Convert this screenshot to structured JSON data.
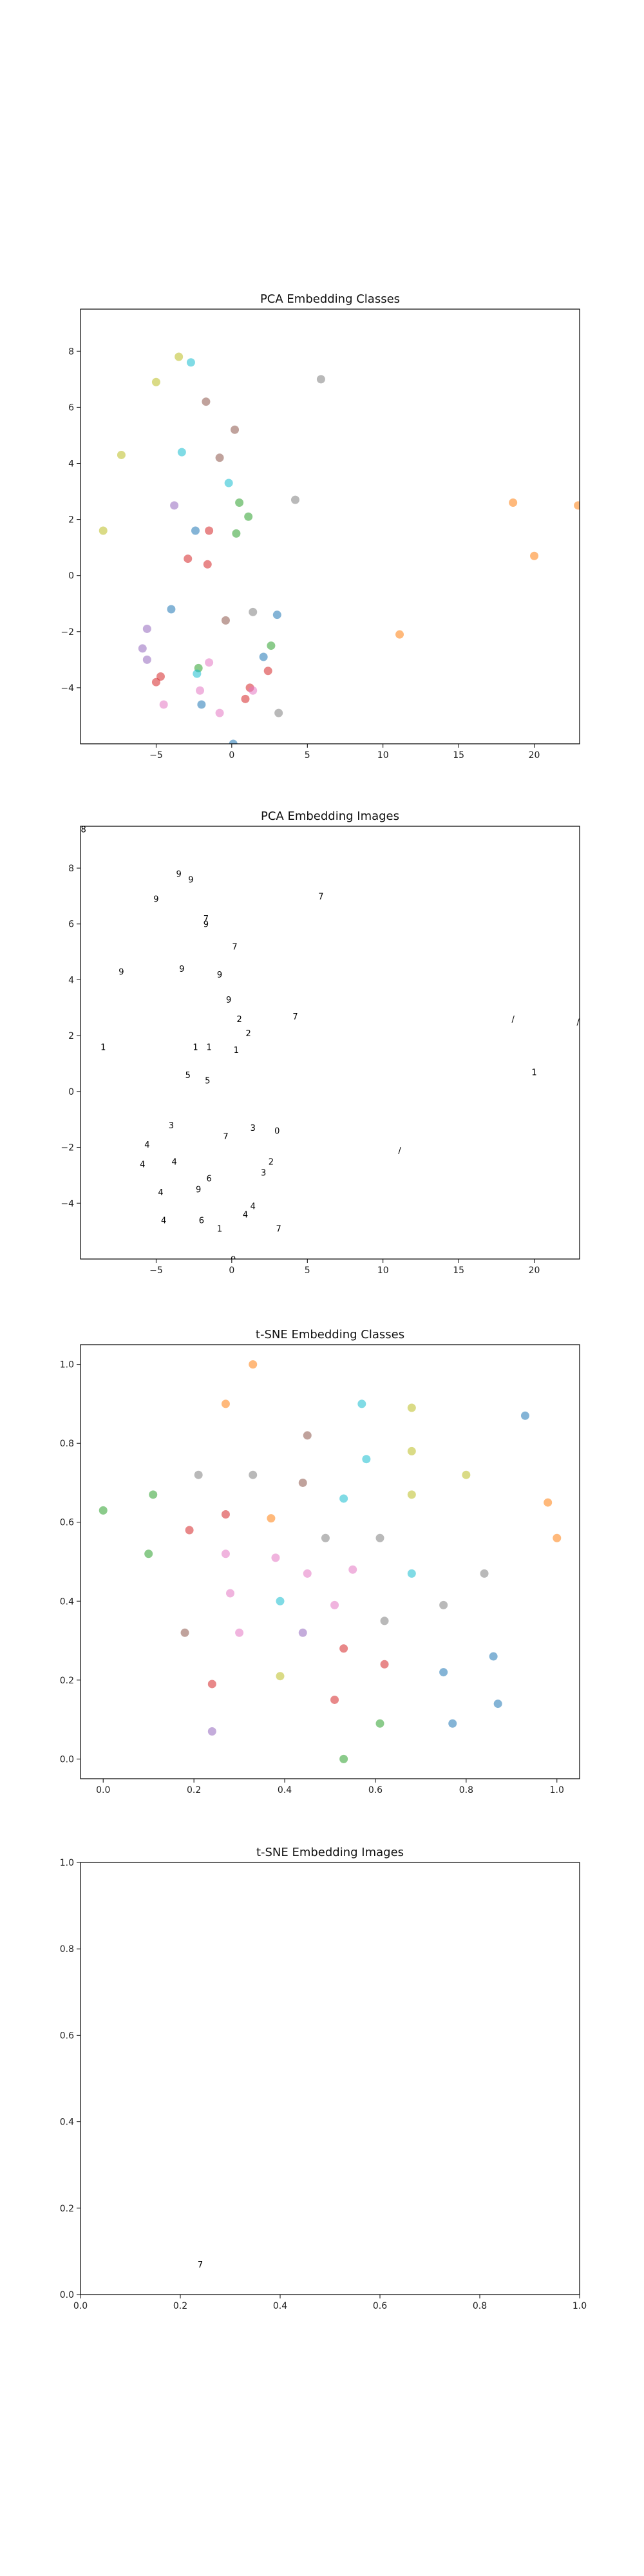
{
  "chart_data": [
    {
      "type": "scatter",
      "title": "PCA Embedding Classes",
      "xlim": [
        -10,
        23
      ],
      "ylim": [
        -6,
        9.5
      ],
      "xticks": [
        -5,
        0,
        5,
        10,
        15,
        20
      ],
      "yticks": [
        -4,
        -2,
        0,
        2,
        4,
        6,
        8
      ],
      "points": [
        {
          "x": -3.5,
          "y": 7.8,
          "c": "#bcbd22"
        },
        {
          "x": -2.7,
          "y": 7.6,
          "c": "#17becf"
        },
        {
          "x": -5,
          "y": 6.9,
          "c": "#bcbd22"
        },
        {
          "x": 5.9,
          "y": 7,
          "c": "#7f7f7f"
        },
        {
          "x": -1.7,
          "y": 6.2,
          "c": "#8c564b"
        },
        {
          "x": 0.2,
          "y": 5.2,
          "c": "#8c564b"
        },
        {
          "x": -7.3,
          "y": 4.3,
          "c": "#bcbd22"
        },
        {
          "x": -3.3,
          "y": 4.4,
          "c": "#17becf"
        },
        {
          "x": -0.8,
          "y": 4.2,
          "c": "#8c564b"
        },
        {
          "x": -3.8,
          "y": 2.5,
          "c": "#9467bd"
        },
        {
          "x": -0.2,
          "y": 3.3,
          "c": "#17becf"
        },
        {
          "x": 4.2,
          "y": 2.7,
          "c": "#7f7f7f"
        },
        {
          "x": 0.5,
          "y": 2.6,
          "c": "#2ca02c"
        },
        {
          "x": 1.1,
          "y": 2.1,
          "c": "#2ca02c"
        },
        {
          "x": 18.6,
          "y": 2.6,
          "c": "#ff7f0e"
        },
        {
          "x": 22.9,
          "y": 2.5,
          "c": "#ff7f0e"
        },
        {
          "x": -8.5,
          "y": 1.6,
          "c": "#bcbd22"
        },
        {
          "x": -2.4,
          "y": 1.6,
          "c": "#1f77b4"
        },
        {
          "x": -1.5,
          "y": 1.6,
          "c": "#d62728"
        },
        {
          "x": 0.3,
          "y": 1.5,
          "c": "#2ca02c"
        },
        {
          "x": -2.9,
          "y": 0.6,
          "c": "#d62728"
        },
        {
          "x": -1.6,
          "y": 0.4,
          "c": "#d62728"
        },
        {
          "x": 20,
          "y": 0.7,
          "c": "#ff7f0e"
        },
        {
          "x": -4,
          "y": -1.2,
          "c": "#1f77b4"
        },
        {
          "x": 1.4,
          "y": -1.3,
          "c": "#7f7f7f"
        },
        {
          "x": 3,
          "y": -1.4,
          "c": "#1f77b4"
        },
        {
          "x": -0.4,
          "y": -1.6,
          "c": "#8c564b"
        },
        {
          "x": 11.1,
          "y": -2.1,
          "c": "#ff7f0e"
        },
        {
          "x": -5.6,
          "y": -1.9,
          "c": "#9467bd"
        },
        {
          "x": -5.9,
          "y": -2.6,
          "c": "#9467bd"
        },
        {
          "x": 2.6,
          "y": -2.5,
          "c": "#2ca02c"
        },
        {
          "x": 2.1,
          "y": -2.9,
          "c": "#1f77b4"
        },
        {
          "x": -5.6,
          "y": -3,
          "c": "#9467bd"
        },
        {
          "x": -1.5,
          "y": -3.1,
          "c": "#e377c2"
        },
        {
          "x": -2.2,
          "y": -3.3,
          "c": "#2ca02c"
        },
        {
          "x": -2.3,
          "y": -3.5,
          "c": "#17becf"
        },
        {
          "x": 2.4,
          "y": -3.4,
          "c": "#d62728"
        },
        {
          "x": -4.7,
          "y": -3.6,
          "c": "#d62728"
        },
        {
          "x": -5,
          "y": -3.8,
          "c": "#d62728"
        },
        {
          "x": -2.1,
          "y": -4.1,
          "c": "#e377c2"
        },
        {
          "x": 1.2,
          "y": -4,
          "c": "#d62728"
        },
        {
          "x": 1.4,
          "y": -4.1,
          "c": "#e377c2"
        },
        {
          "x": 0.9,
          "y": -4.4,
          "c": "#d62728"
        },
        {
          "x": -4.5,
          "y": -4.6,
          "c": "#e377c2"
        },
        {
          "x": -2,
          "y": -4.6,
          "c": "#1f77b4"
        },
        {
          "x": -0.8,
          "y": -4.9,
          "c": "#e377c2"
        },
        {
          "x": 3.1,
          "y": -4.9,
          "c": "#7f7f7f"
        },
        {
          "x": 0.1,
          "y": -6,
          "c": "#1f77b4"
        }
      ]
    },
    {
      "type": "scatter",
      "title": "PCA Embedding Images",
      "xlim": [
        -10,
        23
      ],
      "ylim": [
        -6,
        9.5
      ],
      "xticks": [
        -5,
        0,
        5,
        10,
        15,
        20
      ],
      "yticks": [
        -4,
        -2,
        0,
        2,
        4,
        6,
        8
      ],
      "glyphs": [
        {
          "x": -9.8,
          "y": 9.4,
          "t": "8"
        },
        {
          "x": -3.5,
          "y": 7.8,
          "t": "9"
        },
        {
          "x": -2.7,
          "y": 7.6,
          "t": "9"
        },
        {
          "x": -5,
          "y": 6.9,
          "t": "9"
        },
        {
          "x": 5.9,
          "y": 7,
          "t": "7"
        },
        {
          "x": -1.7,
          "y": 6.2,
          "t": "7"
        },
        {
          "x": -1.7,
          "y": 6,
          "t": "9"
        },
        {
          "x": 0.2,
          "y": 5.2,
          "t": "7"
        },
        {
          "x": -7.3,
          "y": 4.3,
          "t": "9"
        },
        {
          "x": -3.3,
          "y": 4.4,
          "t": "9"
        },
        {
          "x": -0.8,
          "y": 4.2,
          "t": "9"
        },
        {
          "x": -0.2,
          "y": 3.3,
          "t": "9"
        },
        {
          "x": 4.2,
          "y": 2.7,
          "t": "7"
        },
        {
          "x": 0.5,
          "y": 2.6,
          "t": "2"
        },
        {
          "x": 1.1,
          "y": 2.1,
          "t": "2"
        },
        {
          "x": 18.6,
          "y": 2.6,
          "t": "/"
        },
        {
          "x": 22.9,
          "y": 2.5,
          "t": "/"
        },
        {
          "x": -8.5,
          "y": 1.6,
          "t": "1"
        },
        {
          "x": -2.4,
          "y": 1.6,
          "t": "1"
        },
        {
          "x": -1.5,
          "y": 1.6,
          "t": "1"
        },
        {
          "x": 0.3,
          "y": 1.5,
          "t": "1"
        },
        {
          "x": -2.9,
          "y": 0.6,
          "t": "5"
        },
        {
          "x": -1.6,
          "y": 0.4,
          "t": "5"
        },
        {
          "x": 20,
          "y": 0.7,
          "t": "1"
        },
        {
          "x": -4,
          "y": -1.2,
          "t": "3"
        },
        {
          "x": 1.4,
          "y": -1.3,
          "t": "3"
        },
        {
          "x": 3,
          "y": -1.4,
          "t": "0"
        },
        {
          "x": -0.4,
          "y": -1.6,
          "t": "7"
        },
        {
          "x": 11.1,
          "y": -2.1,
          "t": "/"
        },
        {
          "x": -5.6,
          "y": -1.9,
          "t": "4"
        },
        {
          "x": -5.9,
          "y": -2.6,
          "t": "4"
        },
        {
          "x": 2.6,
          "y": -2.5,
          "t": "2"
        },
        {
          "x": 2.1,
          "y": -2.9,
          "t": "3"
        },
        {
          "x": -3.8,
          "y": -2.5,
          "t": "4"
        },
        {
          "x": -1.5,
          "y": -3.1,
          "t": "6"
        },
        {
          "x": -2.2,
          "y": -3.5,
          "t": "9"
        },
        {
          "x": -4.7,
          "y": -3.6,
          "t": "4"
        },
        {
          "x": 1.4,
          "y": -4.1,
          "t": "4"
        },
        {
          "x": 0.9,
          "y": -4.4,
          "t": "4"
        },
        {
          "x": -4.5,
          "y": -4.6,
          "t": "4"
        },
        {
          "x": -2,
          "y": -4.6,
          "t": "6"
        },
        {
          "x": -0.8,
          "y": -4.9,
          "t": "1"
        },
        {
          "x": 3.1,
          "y": -4.9,
          "t": "7"
        },
        {
          "x": 0.1,
          "y": -6,
          "t": "0"
        }
      ]
    },
    {
      "type": "scatter",
      "title": "t-SNE Embedding Classes",
      "xlim": [
        -0.05,
        1.05
      ],
      "ylim": [
        -0.05,
        1.05
      ],
      "xticks": [
        0.0,
        0.2,
        0.4,
        0.6,
        0.8,
        1.0
      ],
      "yticks": [
        0.0,
        0.2,
        0.4,
        0.6,
        0.8,
        1.0
      ],
      "points": [
        {
          "x": 0.33,
          "y": 1.0,
          "c": "#ff7f0e"
        },
        {
          "x": 0.27,
          "y": 0.9,
          "c": "#ff7f0e"
        },
        {
          "x": 0.57,
          "y": 0.9,
          "c": "#17becf"
        },
        {
          "x": 0.68,
          "y": 0.89,
          "c": "#bcbd22"
        },
        {
          "x": 0.93,
          "y": 0.87,
          "c": "#1f77b4"
        },
        {
          "x": 0.45,
          "y": 0.82,
          "c": "#8c564b"
        },
        {
          "x": 0.68,
          "y": 0.78,
          "c": "#bcbd22"
        },
        {
          "x": 0.58,
          "y": 0.76,
          "c": "#17becf"
        },
        {
          "x": 0.21,
          "y": 0.72,
          "c": "#7f7f7f"
        },
        {
          "x": 0.33,
          "y": 0.72,
          "c": "#7f7f7f"
        },
        {
          "x": 0.8,
          "y": 0.72,
          "c": "#bcbd22"
        },
        {
          "x": 0.44,
          "y": 0.7,
          "c": "#8c564b"
        },
        {
          "x": 0.11,
          "y": 0.67,
          "c": "#2ca02c"
        },
        {
          "x": 0.68,
          "y": 0.67,
          "c": "#bcbd22"
        },
        {
          "x": 0.53,
          "y": 0.66,
          "c": "#17becf"
        },
        {
          "x": 0.98,
          "y": 0.65,
          "c": "#ff7f0e"
        },
        {
          "x": 0.0,
          "y": 0.63,
          "c": "#2ca02c"
        },
        {
          "x": 0.27,
          "y": 0.62,
          "c": "#d62728"
        },
        {
          "x": 0.37,
          "y": 0.61,
          "c": "#ff7f0e"
        },
        {
          "x": 0.19,
          "y": 0.58,
          "c": "#d62728"
        },
        {
          "x": 0.49,
          "y": 0.56,
          "c": "#7f7f7f"
        },
        {
          "x": 0.61,
          "y": 0.56,
          "c": "#7f7f7f"
        },
        {
          "x": 1.0,
          "y": 0.56,
          "c": "#ff7f0e"
        },
        {
          "x": 0.27,
          "y": 0.52,
          "c": "#e377c2"
        },
        {
          "x": 0.1,
          "y": 0.52,
          "c": "#2ca02c"
        },
        {
          "x": 0.38,
          "y": 0.51,
          "c": "#e377c2"
        },
        {
          "x": 0.55,
          "y": 0.48,
          "c": "#e377c2"
        },
        {
          "x": 0.45,
          "y": 0.47,
          "c": "#e377c2"
        },
        {
          "x": 0.68,
          "y": 0.47,
          "c": "#17becf"
        },
        {
          "x": 0.84,
          "y": 0.47,
          "c": "#7f7f7f"
        },
        {
          "x": 0.28,
          "y": 0.42,
          "c": "#e377c2"
        },
        {
          "x": 0.39,
          "y": 0.4,
          "c": "#17becf"
        },
        {
          "x": 0.51,
          "y": 0.39,
          "c": "#e377c2"
        },
        {
          "x": 0.75,
          "y": 0.39,
          "c": "#7f7f7f"
        },
        {
          "x": 0.62,
          "y": 0.35,
          "c": "#7f7f7f"
        },
        {
          "x": 0.18,
          "y": 0.32,
          "c": "#8c564b"
        },
        {
          "x": 0.3,
          "y": 0.32,
          "c": "#e377c2"
        },
        {
          "x": 0.44,
          "y": 0.32,
          "c": "#9467bd"
        },
        {
          "x": 0.53,
          "y": 0.28,
          "c": "#d62728"
        },
        {
          "x": 0.86,
          "y": 0.26,
          "c": "#1f77b4"
        },
        {
          "x": 0.62,
          "y": 0.24,
          "c": "#d62728"
        },
        {
          "x": 0.75,
          "y": 0.22,
          "c": "#1f77b4"
        },
        {
          "x": 0.39,
          "y": 0.21,
          "c": "#bcbd22"
        },
        {
          "x": 0.24,
          "y": 0.19,
          "c": "#d62728"
        },
        {
          "x": 0.51,
          "y": 0.15,
          "c": "#d62728"
        },
        {
          "x": 0.87,
          "y": 0.14,
          "c": "#1f77b4"
        },
        {
          "x": 0.61,
          "y": 0.09,
          "c": "#2ca02c"
        },
        {
          "x": 0.77,
          "y": 0.09,
          "c": "#1f77b4"
        },
        {
          "x": 0.24,
          "y": 0.07,
          "c": "#9467bd"
        },
        {
          "x": 0.53,
          "y": 0.0,
          "c": "#2ca02c"
        }
      ]
    },
    {
      "type": "scatter",
      "title": "t-SNE Embedding Images",
      "xlim": [
        0,
        1
      ],
      "ylim": [
        0,
        1
      ],
      "xticks": [
        0.0,
        0.2,
        0.4,
        0.6,
        0.8,
        1.0
      ],
      "yticks": [
        0.0,
        0.2,
        0.4,
        0.6,
        0.8,
        1.0
      ],
      "glyphs": [
        {
          "x": 0.24,
          "y": 0.07,
          "t": "7"
        }
      ]
    }
  ]
}
